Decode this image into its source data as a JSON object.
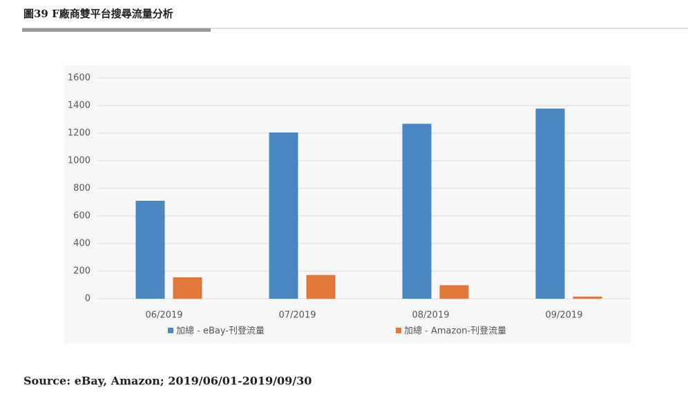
{
  "figure_title": "圖39 F廠商雙平台搜尋流量分析",
  "source": "Source: eBay, Amazon; 2019/06/01-2019/09/30",
  "chart_data": {
    "type": "bar",
    "categories": [
      "06/2019",
      "07/2019",
      "08/2019",
      "09/2019"
    ],
    "series": [
      {
        "name": "加總 - eBay-刊登流量",
        "color": "#4a86c0",
        "values": [
          710,
          1205,
          1268,
          1378
        ]
      },
      {
        "name": "加總 - Amazon-刊登流量",
        "color": "#e1783a",
        "values": [
          155,
          172,
          98,
          15
        ]
      }
    ],
    "ylim": [
      0,
      1600
    ],
    "yticks": [
      0,
      200,
      400,
      600,
      800,
      1000,
      1200,
      1400,
      1600
    ],
    "grid": true
  }
}
